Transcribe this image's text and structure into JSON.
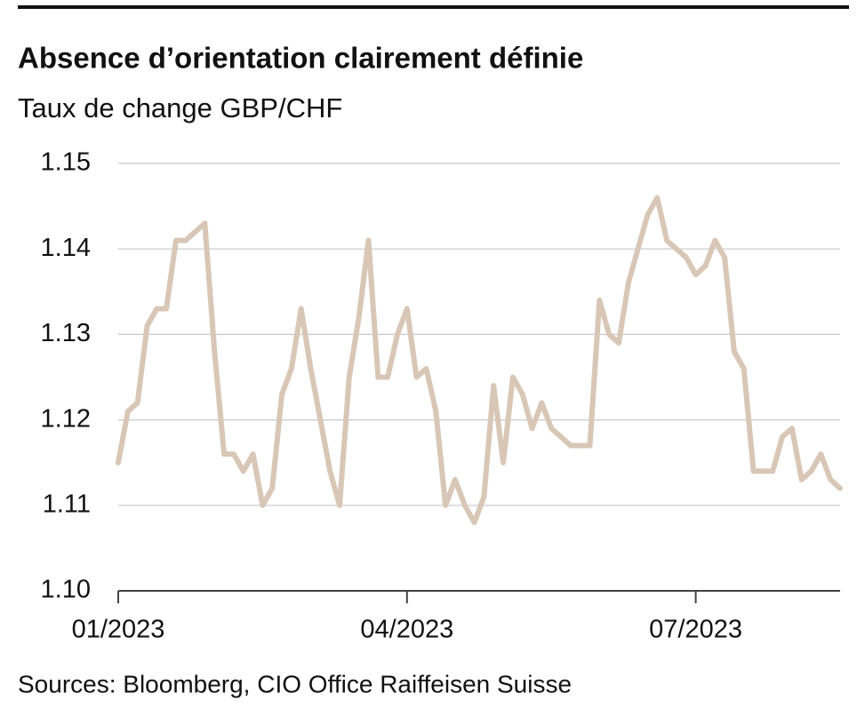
{
  "chart_data": {
    "type": "line",
    "title": "Absence d’orientation clairement définie",
    "subtitle": "Taux de change GBP/CHF",
    "source": "Sources: Bloomberg, CIO Office Raiffeisen Suisse",
    "categories": [
      "01/2023",
      null,
      null,
      null,
      null,
      null,
      null,
      null,
      null,
      null,
      null,
      null,
      null,
      null,
      null,
      null,
      null,
      null,
      null,
      null,
      null,
      null,
      null,
      null,
      null,
      null,
      null,
      null,
      null,
      null,
      "04/2023",
      null,
      null,
      null,
      null,
      null,
      null,
      null,
      null,
      null,
      null,
      null,
      null,
      null,
      null,
      null,
      null,
      null,
      null,
      null,
      null,
      null,
      null,
      null,
      null,
      null,
      null,
      null,
      null,
      null,
      "07/2023",
      null,
      null,
      null,
      null,
      null,
      null,
      null,
      null,
      null,
      null,
      null,
      null,
      null,
      null,
      null
    ],
    "series": [
      {
        "name": "GBP/CHF",
        "color": "#d8c7b6",
        "values": [
          1.115,
          1.121,
          1.122,
          1.131,
          1.133,
          1.133,
          1.141,
          1.141,
          1.142,
          1.143,
          1.128,
          1.116,
          1.116,
          1.114,
          1.116,
          1.11,
          1.112,
          1.123,
          1.126,
          1.133,
          1.126,
          1.12,
          1.114,
          1.11,
          1.125,
          1.132,
          1.141,
          1.125,
          1.125,
          1.13,
          1.133,
          1.125,
          1.126,
          1.121,
          1.11,
          1.113,
          1.11,
          1.108,
          1.111,
          1.124,
          1.115,
          1.125,
          1.123,
          1.119,
          1.122,
          1.119,
          1.118,
          1.117,
          1.117,
          1.117,
          1.134,
          1.13,
          1.129,
          1.136,
          1.14,
          1.144,
          1.146,
          1.141,
          1.14,
          1.139,
          1.137,
          1.138,
          1.141,
          1.139,
          1.128,
          1.126,
          1.114,
          1.114,
          1.114,
          1.118,
          1.119,
          1.113,
          1.114,
          1.116,
          1.113,
          1.112
        ]
      }
    ],
    "ylim": [
      1.1,
      1.15
    ],
    "yticks": [
      {
        "value": 1.1,
        "label": "1.10"
      },
      1.11,
      1.12,
      1.13,
      1.14,
      1.15
    ],
    "grid": true
  }
}
